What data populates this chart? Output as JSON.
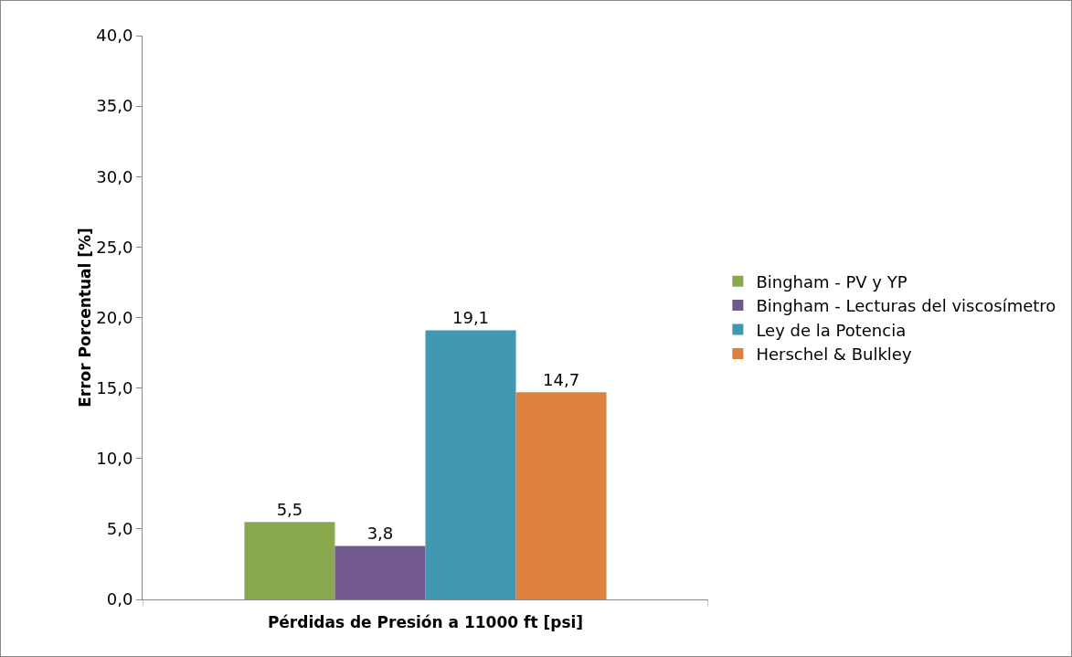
{
  "chart_data": {
    "type": "bar",
    "xlabel": "Pérdidas de Presión a 11000 ft [psi]",
    "ylabel": "Error Porcentual [%]",
    "categories": [
      null
    ],
    "series": [
      {
        "name": "Bingham - PV y YP",
        "color": "#8aa84e",
        "values": [
          5.5
        ],
        "value_labels": [
          "5,5"
        ]
      },
      {
        "name": "Bingham - Lecturas del viscosímetro",
        "color": "#71588f",
        "values": [
          3.8
        ],
        "value_labels": [
          "3,8"
        ]
      },
      {
        "name": "Ley de la Potencia",
        "color": "#4298b0",
        "values": [
          19.1
        ],
        "value_labels": [
          "19,1"
        ]
      },
      {
        "name": "Herschel & Bulkley",
        "color": "#dc823e",
        "values": [
          14.7
        ],
        "value_labels": [
          "14,7"
        ]
      }
    ],
    "ylim": [
      0,
      40
    ],
    "yticks": [
      {
        "value": 0,
        "label": "0,0"
      },
      {
        "value": 5,
        "label": "5,0"
      },
      {
        "value": 10,
        "label": "10,0"
      },
      {
        "value": 15,
        "label": "15,0"
      },
      {
        "value": 20,
        "label": "20,0"
      },
      {
        "value": 25,
        "label": "25,0"
      },
      {
        "value": 30,
        "label": "30,0"
      },
      {
        "value": 35,
        "label": "35,0"
      },
      {
        "value": 40,
        "label": "40,0"
      }
    ],
    "grid": false,
    "legend": "right"
  }
}
